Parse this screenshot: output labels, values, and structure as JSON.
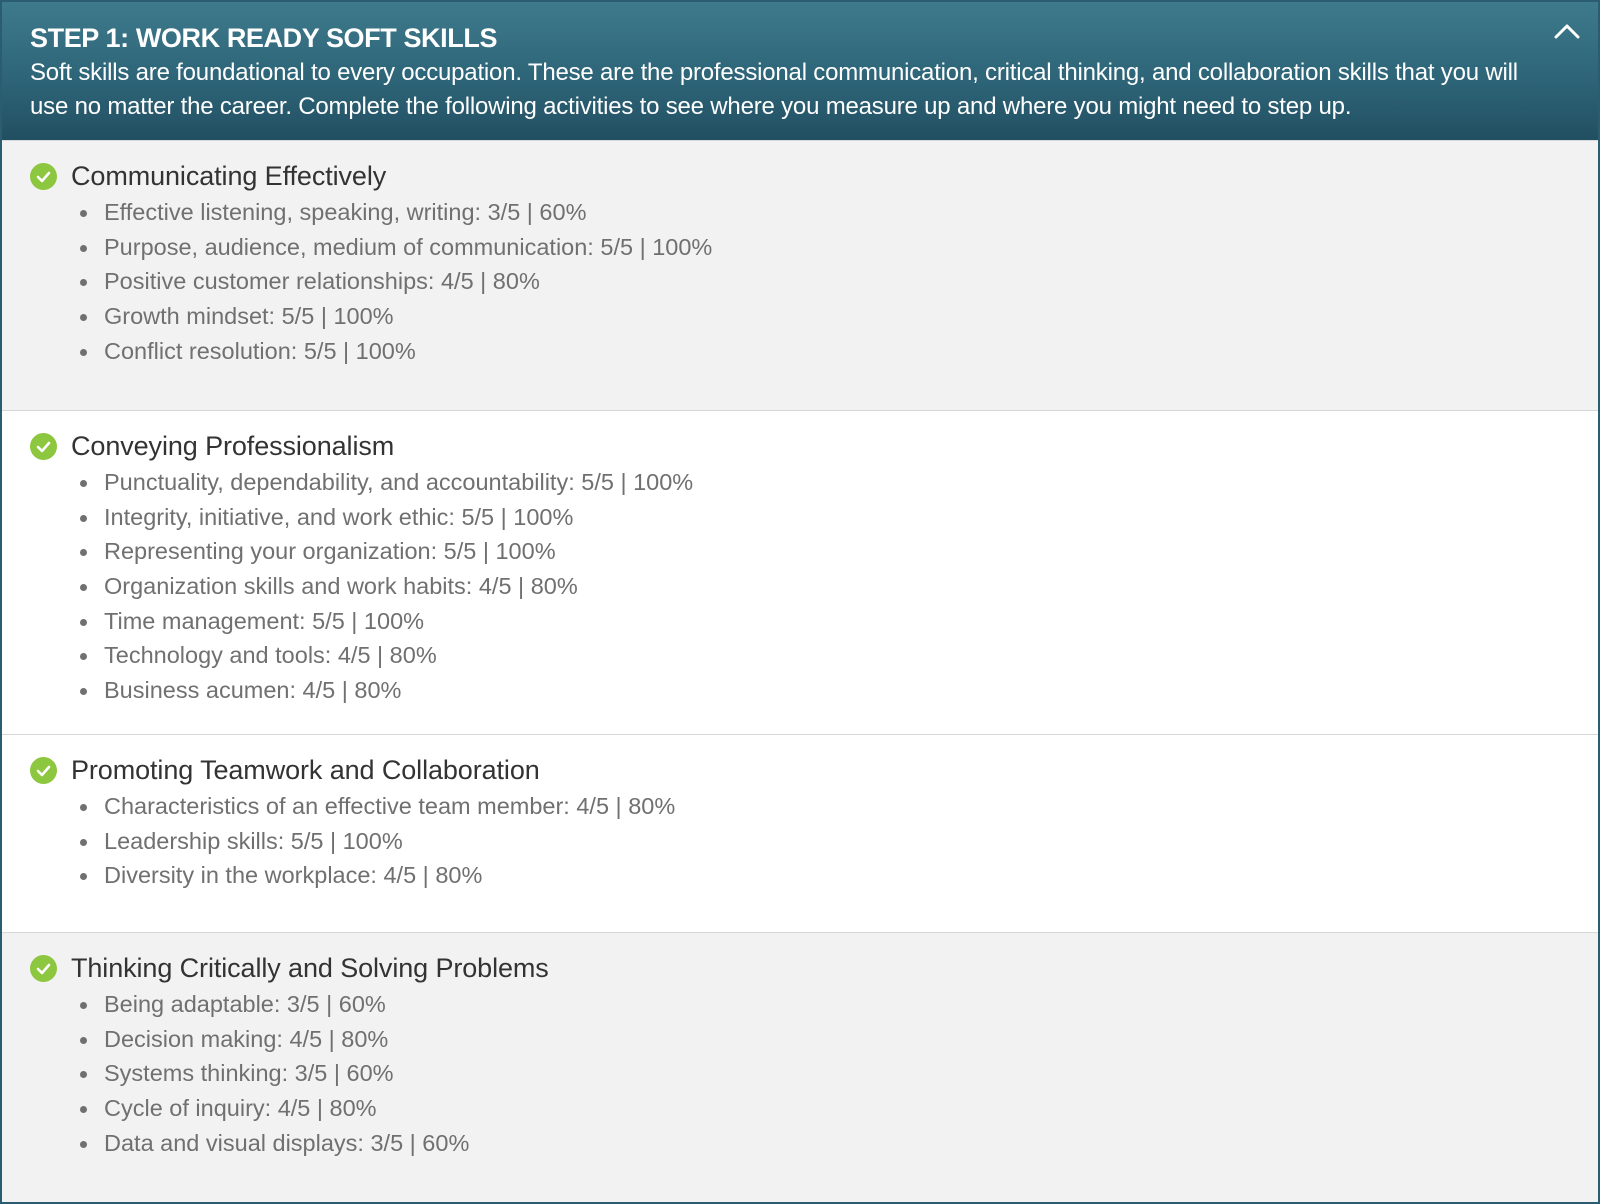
{
  "header": {
    "title": "STEP 1: WORK READY SOFT SKILLS",
    "description": "Soft skills are foundational to every occupation. These are the professional communication, critical thinking, and collaboration skills that you will use no matter the career. Complete the following activities to see where you measure up and where you might need to step up.",
    "collapse_icon": "chevron-up-icon"
  },
  "colors": {
    "header_bg": "#2e6578",
    "check_green": "#8dc63f",
    "section_gray": "#f2f2f2",
    "item_text": "#707070"
  },
  "sections": [
    {
      "title": "Communicating Effectively",
      "status_icon": "check-circle-icon",
      "items": [
        "Effective listening, speaking, writing: 3/5 | 60%",
        "Purpose, audience, medium of communication: 5/5 | 100%",
        "Positive customer relationships: 4/5 | 80%",
        "Growth mindset: 5/5 | 100%",
        "Conflict resolution: 5/5 | 100%"
      ]
    },
    {
      "title": "Conveying Professionalism",
      "status_icon": "check-circle-icon",
      "items": [
        "Punctuality, dependability, and accountability: 5/5 | 100%",
        "Integrity, initiative, and work ethic: 5/5 | 100%",
        "Representing your organization: 5/5 | 100%",
        "Organization skills and work habits: 4/5 | 80%",
        "Time management: 5/5 | 100%",
        "Technology and tools: 4/5 | 80%",
        "Business acumen: 4/5 | 80%"
      ]
    },
    {
      "title": "Promoting Teamwork and Collaboration",
      "status_icon": "check-circle-icon",
      "items": [
        "Characteristics of an effective team member: 4/5 | 80%",
        "Leadership skills: 5/5 | 100%",
        "Diversity in the workplace: 4/5 | 80%"
      ]
    },
    {
      "title": "Thinking Critically and Solving Problems",
      "status_icon": "check-circle-icon",
      "items": [
        "Being adaptable: 3/5 | 60%",
        "Decision making: 4/5 | 80%",
        "Systems thinking: 3/5 | 60%",
        "Cycle of inquiry: 4/5 | 80%",
        "Data and visual displays: 3/5 | 60%"
      ]
    }
  ]
}
